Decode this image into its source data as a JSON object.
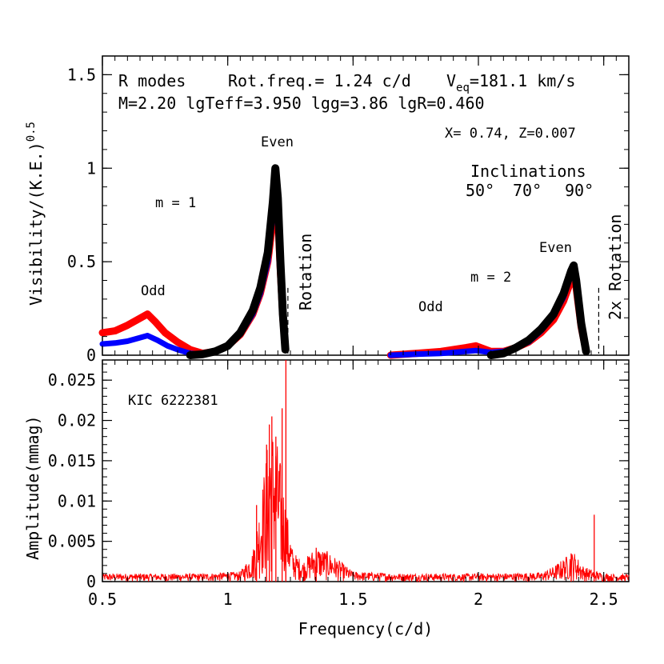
{
  "chart_data": [
    {
      "type": "line",
      "panel": "top",
      "xlim": [
        0.5,
        2.6
      ],
      "ylim": [
        0,
        1.6
      ],
      "ylabel": "Visibility/(K.E.)",
      "ylabel_sup": "0.5",
      "xticks": [
        0.5,
        1,
        1.5,
        2,
        2.5
      ],
      "yticks": [
        {
          "v": 0,
          "label": "0"
        },
        {
          "v": 0.5,
          "label": "0.5"
        },
        {
          "v": 1,
          "label": "1"
        },
        {
          "v": 1.5,
          "label": "1.5"
        }
      ],
      "header": {
        "line1_a": "R modes",
        "line1_b": "Rot.freq.= 1.24 c/d",
        "line1_c_pre": "V",
        "line1_c_sub": "eq",
        "line1_c_post": "=181.1 km/s",
        "line2": "M=2.20 lgTeff=3.950 lgg=3.86 lgR=0.460",
        "line3": "X= 0.74, Z=0.007"
      },
      "legend": {
        "title": "Inclinations",
        "items": [
          {
            "label": "50°",
            "color": "#ff0000"
          },
          {
            "label": "70°",
            "color": "#0000ff"
          },
          {
            "label": "90°",
            "color": "#000000"
          }
        ]
      },
      "annotations": {
        "m1": "m = 1",
        "m2": "m = 2",
        "odd1": "Odd",
        "odd2": "Odd",
        "even1": "Even",
        "even2": "Even",
        "rot": "Rotation",
        "rot2": "2x Rotation"
      },
      "rotation_lines": [
        1.24,
        2.48
      ],
      "series": [
        {
          "name": "50°",
          "color": "#ff0000",
          "x": [
            0.5,
            0.55,
            0.6,
            0.64,
            0.68,
            0.71,
            0.75,
            0.8,
            0.85,
            0.9,
            0.95,
            1.0,
            1.05,
            1.1,
            1.13,
            1.16,
            1.18,
            1.19,
            1.2,
            1.21,
            1.22,
            1.23
          ],
          "y": [
            0.12,
            0.13,
            0.16,
            0.19,
            0.22,
            0.18,
            0.12,
            0.07,
            0.03,
            0.01,
            0.02,
            0.05,
            0.11,
            0.22,
            0.33,
            0.5,
            0.72,
            0.88,
            0.74,
            0.45,
            0.2,
            0.03
          ]
        },
        {
          "name": "50°",
          "color": "#ff0000",
          "x": [
            1.65,
            1.75,
            1.85,
            1.95,
            1.99,
            2.05,
            2.1,
            2.15,
            2.2,
            2.25,
            2.3,
            2.34,
            2.37,
            2.38,
            2.39,
            2.41,
            2.43
          ],
          "y": [
            0.0,
            0.01,
            0.02,
            0.04,
            0.05,
            0.02,
            0.02,
            0.04,
            0.07,
            0.12,
            0.19,
            0.29,
            0.4,
            0.43,
            0.36,
            0.15,
            0.02
          ]
        },
        {
          "name": "70°",
          "color": "#0000ff",
          "x": [
            0.5,
            0.55,
            0.6,
            0.64,
            0.68,
            0.72,
            0.76,
            0.8,
            0.85,
            0.9,
            0.95,
            1.0,
            1.05,
            1.1,
            1.13,
            1.16,
            1.18,
            1.19,
            1.2,
            1.21,
            1.22,
            1.23
          ],
          "y": [
            0.06,
            0.065,
            0.075,
            0.09,
            0.105,
            0.08,
            0.05,
            0.03,
            0.01,
            0.005,
            0.02,
            0.05,
            0.11,
            0.22,
            0.33,
            0.5,
            0.75,
            0.93,
            0.78,
            0.47,
            0.2,
            0.03
          ]
        },
        {
          "name": "70°",
          "color": "#0000ff",
          "x": [
            1.65,
            1.75,
            1.85,
            1.95,
            1.99,
            2.05,
            2.1,
            2.15,
            2.2,
            2.25,
            2.3,
            2.34,
            2.37,
            2.38,
            2.39,
            2.41,
            2.43
          ],
          "y": [
            0.0,
            0.005,
            0.01,
            0.02,
            0.025,
            0.015,
            0.02,
            0.04,
            0.07,
            0.13,
            0.21,
            0.31,
            0.43,
            0.46,
            0.39,
            0.16,
            0.02
          ]
        },
        {
          "name": "90°",
          "color": "#000000",
          "x": [
            0.85,
            0.9,
            0.95,
            1.0,
            1.05,
            1.1,
            1.13,
            1.16,
            1.18,
            1.19,
            1.2,
            1.21,
            1.22,
            1.23
          ],
          "y": [
            0.0,
            0.005,
            0.02,
            0.05,
            0.12,
            0.24,
            0.36,
            0.55,
            0.82,
            1.0,
            0.84,
            0.5,
            0.22,
            0.03
          ]
        },
        {
          "name": "90°",
          "color": "#000000",
          "x": [
            2.05,
            2.1,
            2.15,
            2.2,
            2.25,
            2.3,
            2.34,
            2.37,
            2.38,
            2.39,
            2.41,
            2.43
          ],
          "y": [
            0.0,
            0.01,
            0.04,
            0.08,
            0.14,
            0.22,
            0.33,
            0.45,
            0.48,
            0.4,
            0.17,
            0.02
          ]
        }
      ]
    },
    {
      "type": "line",
      "panel": "bottom",
      "xlim": [
        0.5,
        2.6
      ],
      "ylim": [
        0,
        0.0275
      ],
      "xlabel": "Frequency(c/d)",
      "ylabel": "Amplitude(mmag)",
      "xticks": [
        {
          "v": 0.5,
          "label": "0.5"
        },
        {
          "v": 1,
          "label": "1"
        },
        {
          "v": 1.5,
          "label": "1.5"
        },
        {
          "v": 2,
          "label": "2"
        },
        {
          "v": 2.5,
          "label": "2.5"
        }
      ],
      "yticks": [
        {
          "v": 0,
          "label": "0"
        },
        {
          "v": 0.005,
          "label": "0.005"
        },
        {
          "v": 0.01,
          "label": "0.01"
        },
        {
          "v": 0.015,
          "label": "0.015"
        },
        {
          "v": 0.02,
          "label": "0.02"
        },
        {
          "v": 0.025,
          "label": "0.025"
        }
      ],
      "label": "KIC 6222381",
      "color": "#ff0000",
      "series": [
        {
          "name": "KIC 6222381",
          "envelope_x": [
            0.5,
            0.9,
            1.05,
            1.1,
            1.13,
            1.15,
            1.17,
            1.19,
            1.21,
            1.23,
            1.26,
            1.3,
            1.35,
            1.4,
            1.45,
            1.5,
            1.7,
            2.0,
            2.25,
            2.3,
            2.35,
            2.38,
            2.42,
            2.5,
            2.6
          ],
          "envelope_y": [
            0.0008,
            0.0008,
            0.001,
            0.003,
            0.008,
            0.012,
            0.016,
            0.015,
            0.012,
            0.008,
            0.003,
            0.002,
            0.0035,
            0.003,
            0.002,
            0.001,
            0.0008,
            0.0008,
            0.0009,
            0.0015,
            0.0025,
            0.003,
            0.0015,
            0.0008,
            0.0007
          ],
          "peaks": [
            {
              "x": 1.232,
              "y": 0.028
            },
            {
              "x": 1.217,
              "y": 0.0215
            },
            {
              "x": 1.176,
              "y": 0.0205
            },
            {
              "x": 1.166,
              "y": 0.0195
            },
            {
              "x": 1.192,
              "y": 0.018
            },
            {
              "x": 1.155,
              "y": 0.017
            },
            {
              "x": 1.115,
              "y": 0.0095
            },
            {
              "x": 1.353,
              "y": 0.0042
            },
            {
              "x": 2.462,
              "y": 0.0083
            },
            {
              "x": 2.37,
              "y": 0.0035
            }
          ]
        }
      ]
    }
  ]
}
